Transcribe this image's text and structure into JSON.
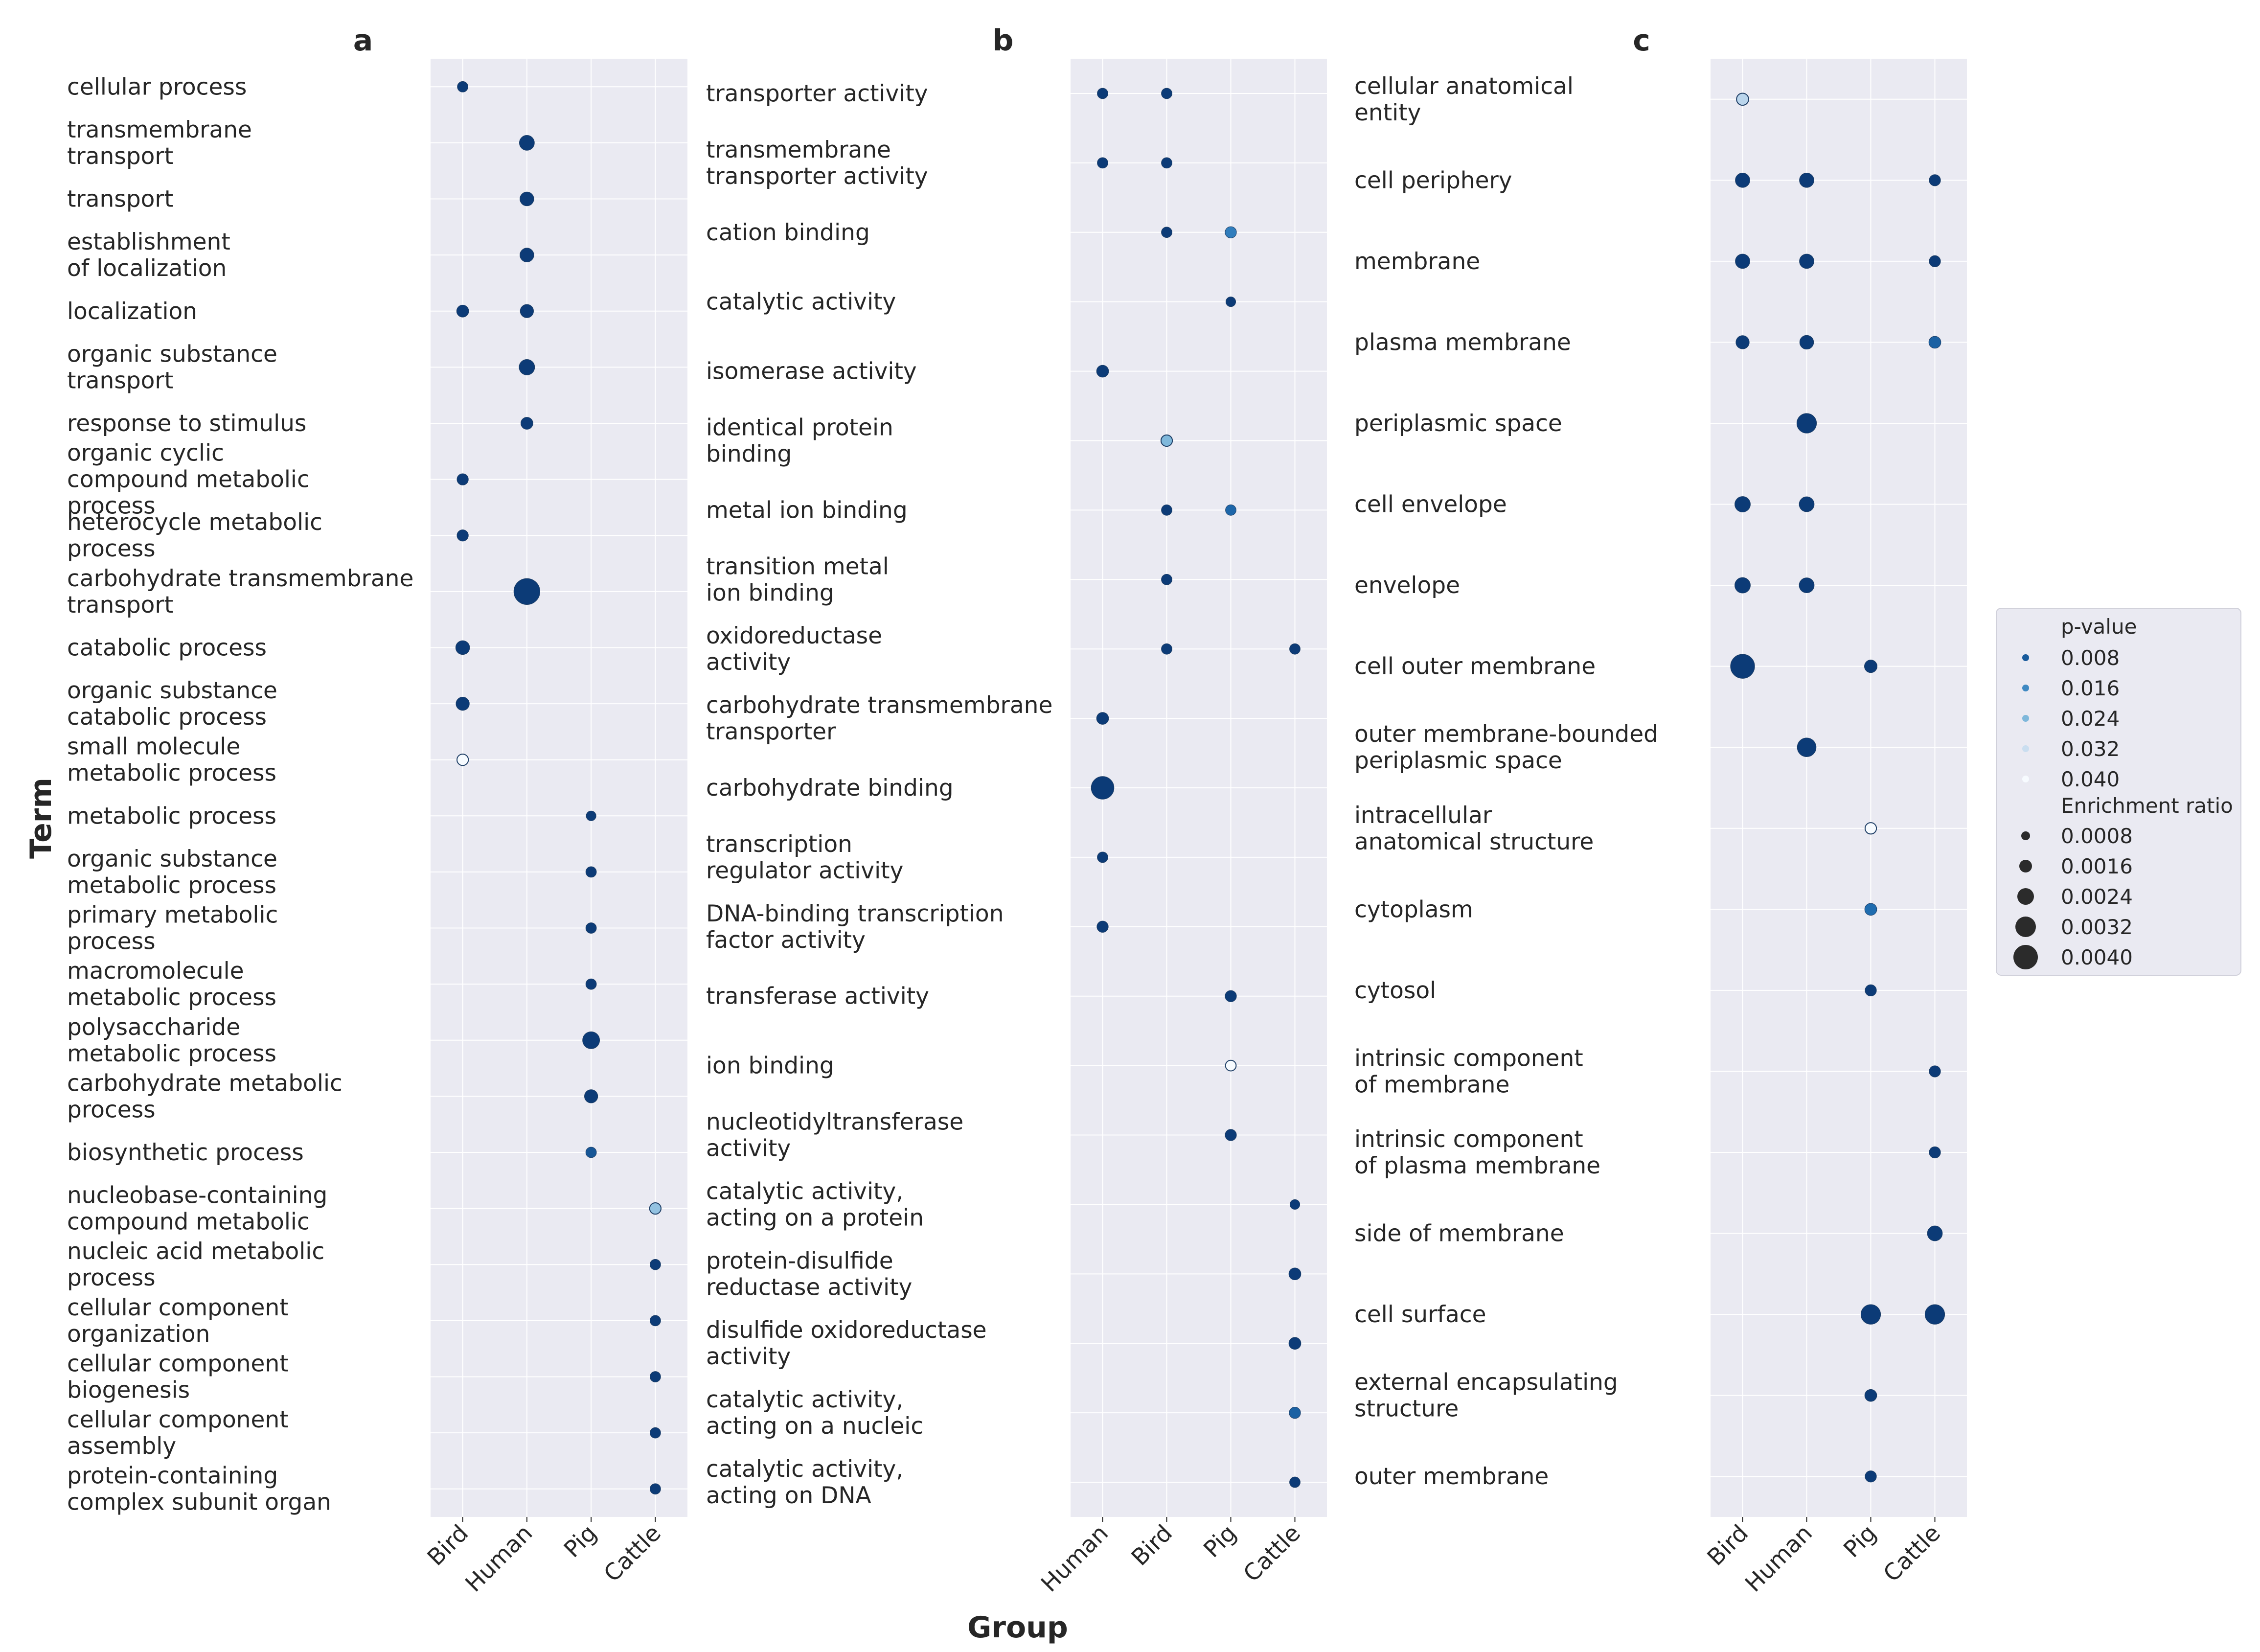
{
  "chart_data": {
    "type": "scatter",
    "xlabel": "Group",
    "ylabel": "Term",
    "legend": {
      "placement": "right",
      "color_title": "p-value",
      "color_entries": [
        "0.008",
        "0.016",
        "0.024",
        "0.032",
        "0.040"
      ],
      "size_title": "Enrichment ratio",
      "size_entries": [
        "0.0008",
        "0.0016",
        "0.0024",
        "0.0032",
        "0.0040"
      ]
    },
    "grid": true,
    "panels": [
      {
        "letter": "a",
        "groups": [
          "Bird",
          "Human",
          "Pig",
          "Cattle"
        ],
        "terms": [
          "cellular process",
          "transmembrane\ntransport",
          "transport",
          "establishment\nof localization",
          "localization",
          "organic substance\ntransport",
          "response to stimulus",
          "organic cyclic\ncompound metabolic\nprocess",
          "heterocycle metabolic\nprocess",
          "carbohydrate transmembrane\ntransport",
          "catabolic process",
          "organic substance\ncatabolic process",
          "small molecule\nmetabolic process",
          "metabolic process",
          "organic substance\nmetabolic process",
          "primary metabolic\nprocess",
          "macromolecule\nmetabolic process",
          "polysaccharide\nmetabolic process",
          "carbohydrate metabolic\nprocess",
          "biosynthetic process",
          "nucleobase-containing\ncompound metabolic",
          "nucleic acid metabolic\nprocess",
          "cellular component\norganization",
          "cellular component\nbiogenesis",
          "cellular component\nassembly",
          "protein-containing\ncomplex subunit organ"
        ],
        "points": [
          {
            "term": 0,
            "group": "Bird",
            "p": 0.002,
            "er": 0.0007
          },
          {
            "term": 1,
            "group": "Human",
            "p": 0.002,
            "er": 0.0014
          },
          {
            "term": 2,
            "group": "Human",
            "p": 0.002,
            "er": 0.0012
          },
          {
            "term": 3,
            "group": "Human",
            "p": 0.002,
            "er": 0.0012
          },
          {
            "term": 4,
            "group": "Bird",
            "p": 0.002,
            "er": 0.0009
          },
          {
            "term": 4,
            "group": "Human",
            "p": 0.002,
            "er": 0.0011
          },
          {
            "term": 5,
            "group": "Human",
            "p": 0.002,
            "er": 0.0015
          },
          {
            "term": 6,
            "group": "Human",
            "p": 0.002,
            "er": 0.0009
          },
          {
            "term": 7,
            "group": "Bird",
            "p": 0.002,
            "er": 0.0008
          },
          {
            "term": 8,
            "group": "Bird",
            "p": 0.002,
            "er": 0.0008
          },
          {
            "term": 9,
            "group": "Human",
            "p": 0.002,
            "er": 0.0042
          },
          {
            "term": 10,
            "group": "Bird",
            "p": 0.002,
            "er": 0.0012
          },
          {
            "term": 11,
            "group": "Bird",
            "p": 0.002,
            "er": 0.0011
          },
          {
            "term": 12,
            "group": "Bird",
            "p": 0.04,
            "er": 0.0008
          },
          {
            "term": 13,
            "group": "Pig",
            "p": 0.002,
            "er": 0.0006
          },
          {
            "term": 14,
            "group": "Pig",
            "p": 0.002,
            "er": 0.0007
          },
          {
            "term": 15,
            "group": "Pig",
            "p": 0.002,
            "er": 0.0007
          },
          {
            "term": 16,
            "group": "Pig",
            "p": 0.002,
            "er": 0.0007
          },
          {
            "term": 17,
            "group": "Pig",
            "p": 0.002,
            "er": 0.0018
          },
          {
            "term": 18,
            "group": "Pig",
            "p": 0.002,
            "er": 0.0011
          },
          {
            "term": 19,
            "group": "Pig",
            "p": 0.007,
            "er": 0.0007
          },
          {
            "term": 20,
            "group": "Cattle",
            "p": 0.026,
            "er": 0.0008
          },
          {
            "term": 21,
            "group": "Cattle",
            "p": 0.002,
            "er": 0.0007
          },
          {
            "term": 22,
            "group": "Cattle",
            "p": 0.002,
            "er": 0.0007
          },
          {
            "term": 23,
            "group": "Cattle",
            "p": 0.002,
            "er": 0.0007
          },
          {
            "term": 24,
            "group": "Cattle",
            "p": 0.002,
            "er": 0.0007
          },
          {
            "term": 25,
            "group": "Cattle",
            "p": 0.002,
            "er": 0.0007
          }
        ]
      },
      {
        "letter": "b",
        "groups": [
          "Human",
          "Bird",
          "Pig",
          "Cattle"
        ],
        "terms": [
          "transporter activity",
          "transmembrane\ntransporter activity",
          "cation binding",
          "catalytic activity",
          "isomerase activity",
          "identical protein\nbinding",
          "metal ion binding",
          "transition metal\nion binding",
          "oxidoreductase\nactivity",
          "carbohydrate transmembrane\ntransporter",
          "carbohydrate binding",
          "transcription\nregulator activity",
          "DNA-binding transcription\nfactor activity",
          "transferase activity",
          "ion binding",
          "nucleotidyltransferase\nactivity",
          "catalytic activity,\nacting on a protein",
          "protein-disulfide\nreductase activity",
          "disulfide oxidoreductase\nactivity",
          "catalytic activity,\nacting on a nucleic",
          "catalytic activity,\nacting on DNA"
        ],
        "points": [
          {
            "term": 0,
            "group": "Human",
            "p": 0.002,
            "er": 0.0007
          },
          {
            "term": 0,
            "group": "Bird",
            "p": 0.002,
            "er": 0.0007
          },
          {
            "term": 1,
            "group": "Human",
            "p": 0.002,
            "er": 0.0007
          },
          {
            "term": 1,
            "group": "Bird",
            "p": 0.002,
            "er": 0.0007
          },
          {
            "term": 2,
            "group": "Bird",
            "p": 0.002,
            "er": 0.0007
          },
          {
            "term": 2,
            "group": "Pig",
            "p": 0.014,
            "er": 0.0008
          },
          {
            "term": 3,
            "group": "Pig",
            "p": 0.002,
            "er": 0.0006
          },
          {
            "term": 4,
            "group": "Human",
            "p": 0.002,
            "er": 0.0009
          },
          {
            "term": 5,
            "group": "Bird",
            "p": 0.024,
            "er": 0.0008
          },
          {
            "term": 6,
            "group": "Bird",
            "p": 0.002,
            "er": 0.0007
          },
          {
            "term": 6,
            "group": "Pig",
            "p": 0.01,
            "er": 0.0007
          },
          {
            "term": 7,
            "group": "Bird",
            "p": 0.002,
            "er": 0.0007
          },
          {
            "term": 8,
            "group": "Bird",
            "p": 0.002,
            "er": 0.0007
          },
          {
            "term": 8,
            "group": "Cattle",
            "p": 0.002,
            "er": 0.0007
          },
          {
            "term": 9,
            "group": "Human",
            "p": 0.002,
            "er": 0.0009
          },
          {
            "term": 10,
            "group": "Human",
            "p": 0.002,
            "er": 0.0032
          },
          {
            "term": 11,
            "group": "Human",
            "p": 0.002,
            "er": 0.0007
          },
          {
            "term": 12,
            "group": "Human",
            "p": 0.002,
            "er": 0.0008
          },
          {
            "term": 13,
            "group": "Pig",
            "p": 0.002,
            "er": 0.0008
          },
          {
            "term": 14,
            "group": "Pig",
            "p": 0.04,
            "er": 0.0007
          },
          {
            "term": 15,
            "group": "Pig",
            "p": 0.002,
            "er": 0.0008
          },
          {
            "term": 16,
            "group": "Cattle",
            "p": 0.002,
            "er": 0.0006
          },
          {
            "term": 17,
            "group": "Cattle",
            "p": 0.002,
            "er": 0.0009
          },
          {
            "term": 18,
            "group": "Cattle",
            "p": 0.002,
            "er": 0.0009
          },
          {
            "term": 19,
            "group": "Cattle",
            "p": 0.009,
            "er": 0.0008
          },
          {
            "term": 20,
            "group": "Cattle",
            "p": 0.002,
            "er": 0.0007
          }
        ]
      },
      {
        "letter": "c",
        "groups": [
          "Bird",
          "Human",
          "Pig",
          "Cattle"
        ],
        "terms": [
          "cellular anatomical\nentity",
          "cell periphery",
          "membrane",
          "plasma membrane",
          "periplasmic space",
          "cell envelope",
          "envelope",
          "cell outer membrane",
          "outer membrane-bounded\nperiplasmic space",
          "intracellular\nanatomical structure",
          "cytoplasm",
          "cytosol",
          "intrinsic component\nof membrane",
          "intrinsic component\nof plasma membrane",
          "side of membrane",
          "cell surface",
          "external encapsulating\nstructure",
          "outer membrane"
        ],
        "points": [
          {
            "term": 0,
            "group": "Bird",
            "p": 0.03,
            "er": 0.0009
          },
          {
            "term": 1,
            "group": "Bird",
            "p": 0.002,
            "er": 0.0013
          },
          {
            "term": 1,
            "group": "Human",
            "p": 0.002,
            "er": 0.0013
          },
          {
            "term": 1,
            "group": "Cattle",
            "p": 0.002,
            "er": 0.0008
          },
          {
            "term": 2,
            "group": "Bird",
            "p": 0.002,
            "er": 0.0013
          },
          {
            "term": 2,
            "group": "Human",
            "p": 0.002,
            "er": 0.0013
          },
          {
            "term": 2,
            "group": "Cattle",
            "p": 0.002,
            "er": 0.0008
          },
          {
            "term": 3,
            "group": "Bird",
            "p": 0.002,
            "er": 0.0011
          },
          {
            "term": 3,
            "group": "Human",
            "p": 0.002,
            "er": 0.0012
          },
          {
            "term": 3,
            "group": "Cattle",
            "p": 0.009,
            "er": 0.0009
          },
          {
            "term": 4,
            "group": "Human",
            "p": 0.002,
            "er": 0.0024
          },
          {
            "term": 5,
            "group": "Bird",
            "p": 0.002,
            "er": 0.0015
          },
          {
            "term": 5,
            "group": "Human",
            "p": 0.002,
            "er": 0.0014
          },
          {
            "term": 6,
            "group": "Bird",
            "p": 0.002,
            "er": 0.0015
          },
          {
            "term": 6,
            "group": "Human",
            "p": 0.002,
            "er": 0.0014
          },
          {
            "term": 7,
            "group": "Bird",
            "p": 0.002,
            "er": 0.0036
          },
          {
            "term": 7,
            "group": "Pig",
            "p": 0.002,
            "er": 0.001
          },
          {
            "term": 8,
            "group": "Human",
            "p": 0.002,
            "er": 0.0022
          },
          {
            "term": 9,
            "group": "Pig",
            "p": 0.04,
            "er": 0.0008
          },
          {
            "term": 10,
            "group": "Pig",
            "p": 0.011,
            "er": 0.0009
          },
          {
            "term": 11,
            "group": "Pig",
            "p": 0.002,
            "er": 0.0008
          },
          {
            "term": 12,
            "group": "Cattle",
            "p": 0.002,
            "er": 0.0008
          },
          {
            "term": 13,
            "group": "Cattle",
            "p": 0.002,
            "er": 0.0008
          },
          {
            "term": 14,
            "group": "Cattle",
            "p": 0.002,
            "er": 0.0014
          },
          {
            "term": 15,
            "group": "Pig",
            "p": 0.002,
            "er": 0.0024
          },
          {
            "term": 15,
            "group": "Cattle",
            "p": 0.002,
            "er": 0.0024
          },
          {
            "term": 16,
            "group": "Pig",
            "p": 0.002,
            "er": 0.0009
          },
          {
            "term": 17,
            "group": "Pig",
            "p": 0.002,
            "er": 0.0008
          }
        ]
      }
    ]
  }
}
